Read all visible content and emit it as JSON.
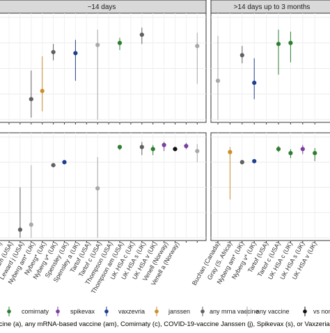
{
  "chart_data": {
    "type": "scatter",
    "title": "",
    "facets": {
      "columns": [
        "~14 days",
        ">14 days up to 3 months"
      ],
      "rows": 2
    },
    "categories": {
      "left": [
        "Lazarus (Israel)",
        "Leward (USA)",
        "Leward am (USA)",
        "Leward j (USA)",
        "Nyberg am* (UK)",
        "Nyberg* (UK)",
        "Nyberg v* (UK)",
        "Spensley (UK)",
        "Spensley a (UK)",
        "Tartof (USA)",
        "Tartof c (USA)",
        "Thompson (USA)",
        "Thompson am (USA)",
        "UK HSA c (UK)",
        "UK HSA s (UK)",
        "UK HSA v (UK)",
        "Venell (Norway)",
        "Venell a (Norway)"
      ],
      "right": [
        "Buchan (Canada)",
        "Gray (S. Africa)",
        "Nyberg am* (UK)",
        "Nyberg v* (UK)",
        "Tartof (USA)",
        "Tartof c (USA)",
        "UK HSA c (UK)",
        "UK HSA s (UK)",
        "UK HSA v (UK)"
      ]
    },
    "visible_labels": {
      "left": [
        "arus (Israel)",
        "ard (USA)",
        "Leward (USA)",
        "Leward am (USA)",
        "Leward j (USA)",
        "Nyberg am* (UK)",
        "Nyberg* (UK)",
        "Nyberg v* (UK)",
        "Spensley (UK)",
        "Spensley a (UK)",
        "Tartof (USA)",
        "Tartof c (USA)",
        "Thompson (USA)",
        "Thompson am (USA)",
        "UK HSA c (UK)",
        "UK HSA s (UK)",
        "UK HSA v (UK)",
        "Venell (Norway)",
        "Venell a (Norway)"
      ],
      "right": [
        "Buchan (Canada)",
        "Gray (S. Africa)",
        "Nyberg am* (UK)",
        "Nyberg v* (UK)",
        "Tartof (USA)",
        "Tartof c (USA)",
        "UK HSA c (UK)",
        "UK HSA s (UK)",
        "UK HSA v (UK)"
      ]
    },
    "ylim": [
      0,
      1
    ],
    "grid": true,
    "points": [
      {
        "panel": "top-left",
        "study": "Leward j (USA)",
        "vaccine": "janssen",
        "est": 0.28,
        "lo": 0.08,
        "hi": 0.62
      },
      {
        "panel": "top-left",
        "study": "Leward am (USA)",
        "vaccine": "any mrna vaccine",
        "est": 0.2,
        "lo": 0.02,
        "hi": 0.48
      },
      {
        "panel": "top-left",
        "study": "Nyberg v* (UK)",
        "vaccine": "vaxzevria",
        "est": 0.65,
        "lo": 0.38,
        "hi": 0.78
      },
      {
        "panel": "top-left",
        "study": "Nyberg am* (UK)",
        "vaccine": "any mrna vaccine",
        "est": 0.66,
        "lo": 0.58,
        "hi": 0.74
      },
      {
        "panel": "top-left",
        "study": "Spensley a (UK)",
        "vaccine": "any vaccine",
        "est": 0.73,
        "lo": 0.0,
        "hi": 0.88
      },
      {
        "panel": "top-left",
        "study": "Tartof c (USA)",
        "vaccine": "comirnaty",
        "est": 0.75,
        "lo": 0.68,
        "hi": 0.8
      },
      {
        "panel": "top-left",
        "study": "Thompson am (USA)",
        "vaccine": "any mrna vaccine",
        "est": 0.83,
        "lo": 0.74,
        "hi": 0.9
      },
      {
        "panel": "top-left",
        "study": "Venell a (Norway)",
        "vaccine": "any vaccine",
        "est": 0.72,
        "lo": 0.35,
        "hi": 0.85
      },
      {
        "panel": "top-right",
        "study": "Buchan (Canada)",
        "vaccine": "any vaccine",
        "est": 0.38,
        "lo": 0.0,
        "hi": 0.82
      },
      {
        "panel": "top-right",
        "study": "Nyberg v* (UK)",
        "vaccine": "vaxzevria",
        "est": 0.36,
        "lo": 0.2,
        "hi": 0.6
      },
      {
        "panel": "top-right",
        "study": "Nyberg am* (UK)",
        "vaccine": "any mrna vaccine",
        "est": 0.63,
        "lo": 0.55,
        "hi": 0.72
      },
      {
        "panel": "top-right",
        "study": "Tartof c (USA)",
        "vaccine": "comirnaty",
        "est": 0.74,
        "lo": 0.44,
        "hi": 0.88
      },
      {
        "panel": "top-right",
        "study": "UK HSA c (UK)",
        "vaccine": "comirnaty",
        "est": 0.75,
        "lo": 0.56,
        "hi": 0.86
      },
      {
        "panel": "bottom-left",
        "study": "Leward (USA)",
        "vaccine": "any mrna vaccine",
        "est": 0.08,
        "lo": 0.0,
        "hi": 0.5
      },
      {
        "panel": "bottom-left",
        "study": "Leward am (USA)",
        "vaccine": "any vaccine",
        "est": 0.13,
        "lo": 0.0,
        "hi": 0.72
      },
      {
        "panel": "bottom-left",
        "study": "Nyberg am* (UK)",
        "vaccine": "any mrna vaccine",
        "est": 0.72,
        "lo": 0.7,
        "hi": 0.74
      },
      {
        "panel": "bottom-left",
        "study": "Nyberg* (UK)",
        "vaccine": "vaxzevria",
        "est": 0.75,
        "lo": 0.74,
        "hi": 0.77
      },
      {
        "panel": "bottom-left",
        "study": "Spensley a (UK)",
        "vaccine": "any vaccine",
        "est": 0.49,
        "lo": 0.0,
        "hi": 0.8
      },
      {
        "panel": "bottom-left",
        "study": "Tartof c (USA)",
        "vaccine": "comirnaty",
        "est": 0.9,
        "lo": 0.87,
        "hi": 0.92
      },
      {
        "panel": "bottom-left",
        "study": "Thompson am (USA)",
        "vaccine": "any mrna vaccine",
        "est": 0.9,
        "lo": 0.82,
        "hi": 0.95
      },
      {
        "panel": "bottom-left",
        "study": "UK HSA c (UK)",
        "vaccine": "comirnaty",
        "est": 0.88,
        "lo": 0.82,
        "hi": 0.92
      },
      {
        "panel": "bottom-left",
        "study": "UK HSA s (UK)",
        "vaccine": "spikevax",
        "est": 0.92,
        "lo": 0.86,
        "hi": 0.95
      },
      {
        "panel": "bottom-left",
        "study": "UK HSA v (UK)",
        "vaccine": "vs non",
        "est": 0.88,
        "lo": 0.86,
        "hi": 0.9
      },
      {
        "panel": "bottom-left",
        "study": "Venell (Norway)",
        "vaccine": "spikevax",
        "est": 0.91,
        "lo": 0.88,
        "hi": 0.94
      },
      {
        "panel": "bottom-left",
        "study": "Venell a (Norway)",
        "vaccine": "any vaccine",
        "est": 0.86,
        "lo": 0.75,
        "hi": 0.93
      },
      {
        "panel": "bottom-right",
        "study": "Gray (S. Africa)",
        "vaccine": "janssen",
        "est": 0.85,
        "lo": 0.38,
        "hi": 0.9
      },
      {
        "panel": "bottom-right",
        "study": "Nyberg am* (UK)",
        "vaccine": "any mrna vaccine",
        "est": 0.75,
        "lo": 0.73,
        "hi": 0.77
      },
      {
        "panel": "bottom-right",
        "study": "Nyberg v* (UK)",
        "vaccine": "vaxzevria",
        "est": 0.76,
        "lo": 0.74,
        "hi": 0.78
      },
      {
        "panel": "bottom-right",
        "study": "Tartof c (USA)",
        "vaccine": "comirnaty",
        "est": 0.88,
        "lo": 0.85,
        "hi": 0.91
      },
      {
        "panel": "bottom-right",
        "study": "UK HSA c (UK)",
        "vaccine": "comirnaty",
        "est": 0.84,
        "lo": 0.79,
        "hi": 0.88
      },
      {
        "panel": "bottom-right",
        "study": "UK HSA s (UK)",
        "vaccine": "spikevax",
        "est": 0.88,
        "lo": 0.83,
        "hi": 0.92
      },
      {
        "panel": "bottom-right",
        "study": "UK HSA v (UK)",
        "vaccine": "comirnaty",
        "est": 0.84,
        "lo": 0.76,
        "hi": 0.89
      }
    ],
    "legend": [
      {
        "name": "comirnaty",
        "color": "#2e7d32"
      },
      {
        "name": "spikevax",
        "color": "#7b3f9e"
      },
      {
        "name": "vaxzevria",
        "color": "#1f3f8f"
      },
      {
        "name": "janssen",
        "color": "#c9902a"
      },
      {
        "name": "any mrna vaccine",
        "color": "#606060"
      },
      {
        "name": "any vaccine",
        "color": "#a8a8a8"
      },
      {
        "name": "vs non",
        "color": "#111111"
      }
    ],
    "legend_placement": "bottom",
    "caption": "ccine (a), any mRNA-based vaccine (am), Comirnaty (c), COVID-19-vaccine Janssen (j), Spikevax (s), or Vaxzeria (v). *unadjuste"
  }
}
